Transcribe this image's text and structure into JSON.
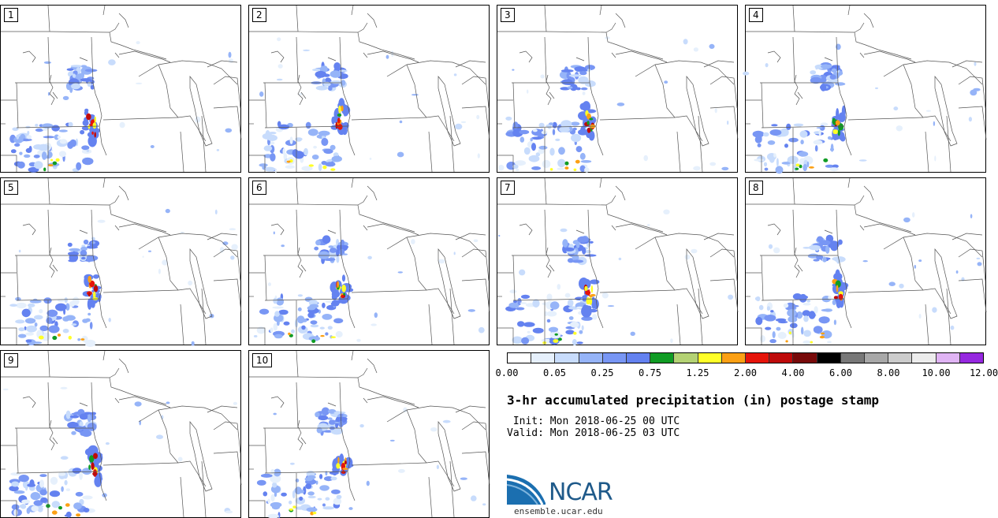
{
  "panels": [
    {
      "label": "1"
    },
    {
      "label": "2"
    },
    {
      "label": "3"
    },
    {
      "label": "4"
    },
    {
      "label": "5"
    },
    {
      "label": "6"
    },
    {
      "label": "7"
    },
    {
      "label": "8"
    },
    {
      "label": "9"
    },
    {
      "label": "10"
    }
  ],
  "colorbar": {
    "colors": [
      "#ffffff",
      "#e6f0fc",
      "#c8dcfc",
      "#96b4f8",
      "#7896f4",
      "#6482f0",
      "#109c24",
      "#b4d274",
      "#ffff28",
      "#fca014",
      "#e6140a",
      "#be0a0a",
      "#780a0a",
      "#000000",
      "#787878",
      "#a8a8a8",
      "#cccccc",
      "#ececec",
      "#e0b4f4",
      "#9628e0"
    ],
    "tick_labels": [
      "0.00",
      "0.05",
      "0.25",
      "0.75",
      "1.25",
      "2.00",
      "4.00",
      "6.00",
      "8.00",
      "10.00",
      "12.00"
    ]
  },
  "title": "3-hr accumulated precipitation (in) postage stamp",
  "init_line": " Init: Mon 2018-06-25 00 UTC",
  "valid_line": "Valid: Mon 2018-06-25 03 UTC",
  "logo": {
    "name": "NCAR",
    "url": "ensemble.ucar.edu"
  }
}
